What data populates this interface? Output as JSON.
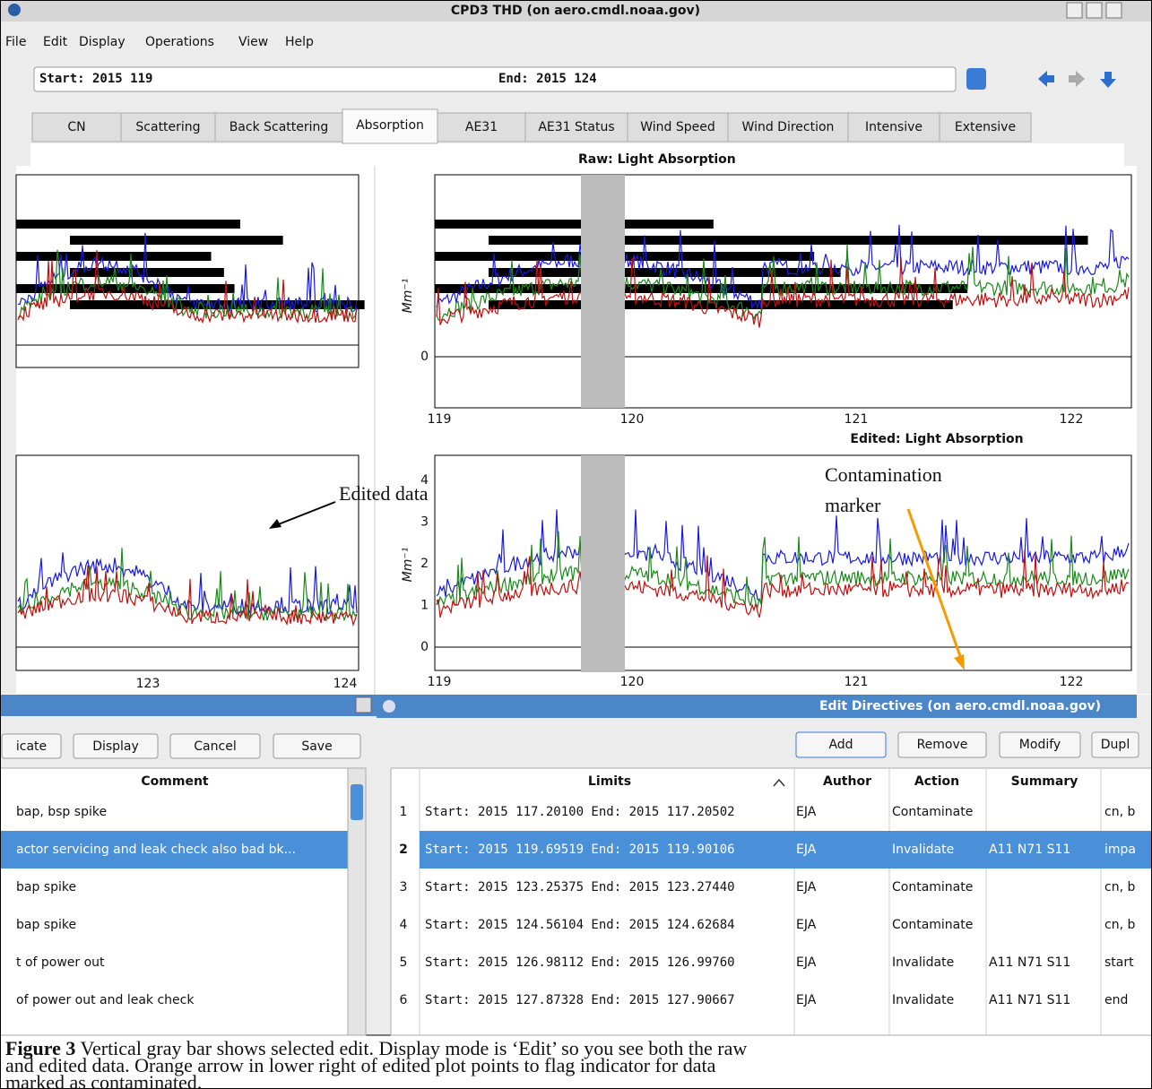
{
  "window": {
    "title": "CPD3 THD (on aero.cmdl.noaa.gov)"
  },
  "menu": [
    "File",
    "Edit",
    "Display",
    "Operations",
    "View",
    "Help"
  ],
  "toolbar": {
    "start": "Start: 2015 119",
    "end": "End: 2015 124"
  },
  "tabs": [
    "CN",
    "Scattering",
    "Back Scattering",
    "Absorption",
    "AE31",
    "AE31 Status",
    "Wind Speed",
    "Wind Direction",
    "Intensive",
    "Extensive"
  ],
  "plots": {
    "raw_title": "Raw: Light Absorption",
    "edited_title": "Edited: Light Absorption",
    "y_label": "Mm⁻¹",
    "right_x_ticks": [
      "119",
      "120",
      "121",
      "122"
    ],
    "left_x_ticks": [
      "123",
      "124"
    ],
    "raw_y_ticks": [
      "0"
    ],
    "edited_y_ticks": [
      "0",
      "1",
      "2",
      "3",
      "4"
    ]
  },
  "annotations": {
    "edited": "Edited data",
    "contamination": [
      "Contamination",
      "marker"
    ]
  },
  "left_dialog": {
    "buttons": [
      "icate",
      "Display",
      "Cancel",
      "Save"
    ],
    "column": "Comment",
    "rows": [
      "bap, bsp spike",
      "actor servicing and leak check also bad bk...",
      "bap spike",
      "bap spike",
      "t of power out",
      "of power out and leak check"
    ]
  },
  "edit_directives": {
    "title": "Edit Directives (on aero.cmdl.noaa.gov)",
    "buttons": [
      "Add",
      "Remove",
      "Modify",
      "Dupl"
    ],
    "columns": [
      "Limits",
      "Author",
      "Action",
      "Summary"
    ],
    "rows": [
      [
        "1",
        "Start: 2015 117.20100   End: 2015 117.20502",
        "EJA",
        "Contaminate",
        "",
        "cn, b"
      ],
      [
        "2",
        "Start: 2015 119.69519   End: 2015 119.90106",
        "EJA",
        "Invalidate",
        "A11 N71 S11",
        "impa"
      ],
      [
        "3",
        "Start: 2015 123.25375   End: 2015 123.27440",
        "EJA",
        "Contaminate",
        "",
        "cn, b"
      ],
      [
        "4",
        "Start: 2015 124.56104   End: 2015 124.62684",
        "EJA",
        "Contaminate",
        "",
        "cn, b"
      ],
      [
        "5",
        "Start: 2015 126.98112   End: 2015 126.99760",
        "EJA",
        "Invalidate",
        "A11 N71 S11",
        "start"
      ],
      [
        "6",
        "Start: 2015 127.87328   End: 2015 127.90667",
        "EJA",
        "Invalidate",
        "A11 N71 S11",
        "end"
      ]
    ]
  },
  "caption": {
    "label": "Figure 3",
    "lines": [
      " Vertical gray bar shows selected edit.  Display mode is ‘Edit’ so you see both the raw",
      "and edited data.  Orange arrow in lower right of edited plot points to flag indicator for data",
      "marked as contaminated."
    ]
  }
}
